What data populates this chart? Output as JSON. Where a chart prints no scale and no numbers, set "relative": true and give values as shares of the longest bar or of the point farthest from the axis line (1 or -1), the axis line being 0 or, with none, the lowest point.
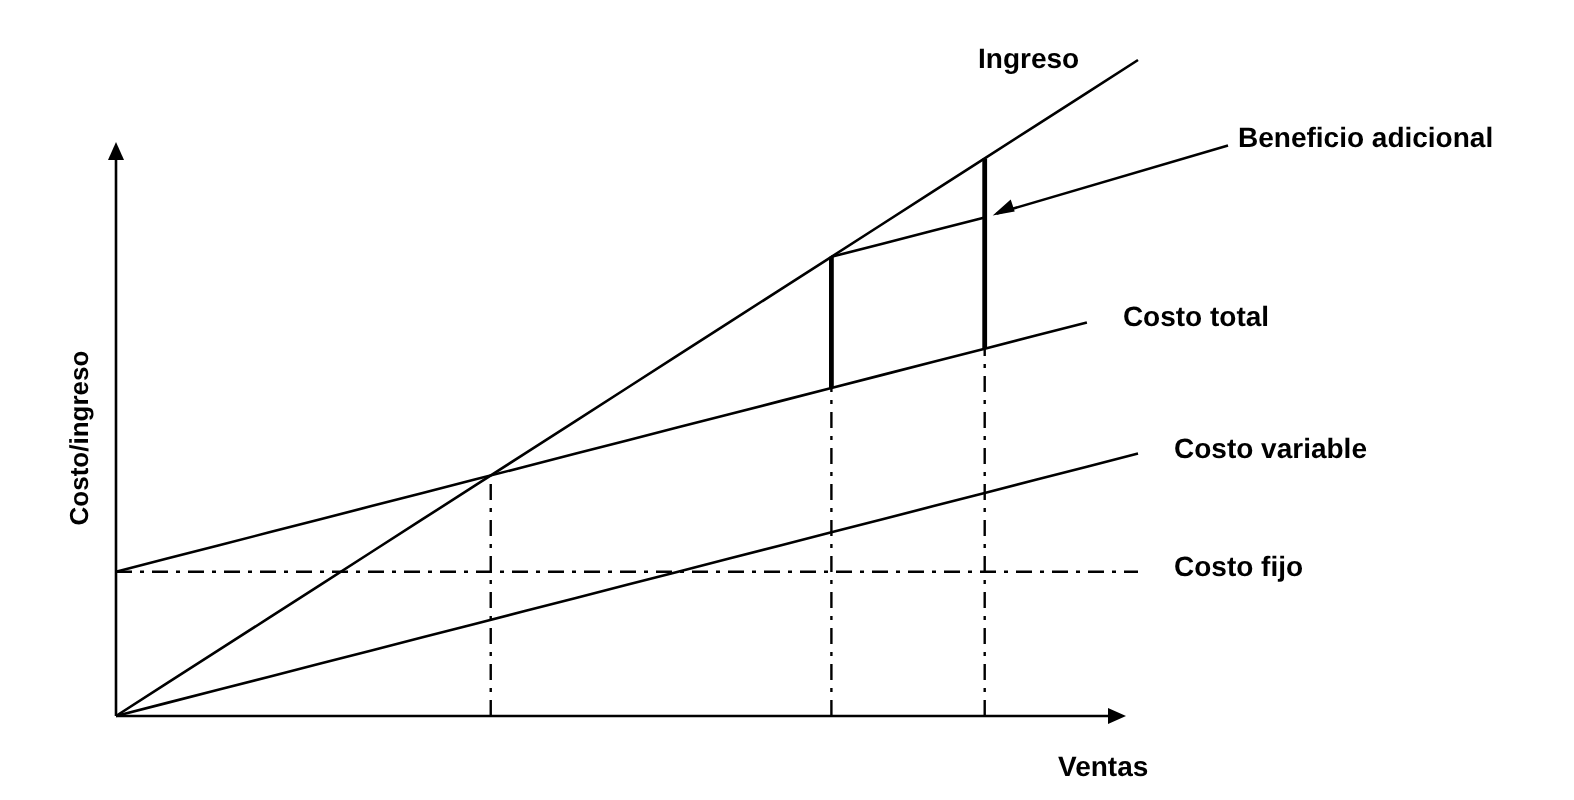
{
  "chart_data": {
    "type": "line",
    "relative": true,
    "xlabel": "Ventas",
    "ylabel": "Costo/ingreso",
    "categories": [
      null,
      null,
      null,
      null,
      null,
      null,
      null,
      null,
      null,
      null,
      null,
      null,
      null,
      null,
      null,
      null,
      null,
      null,
      null,
      null,
      null
    ],
    "series": [
      {
        "name": "Ingreso",
        "color": "#000000",
        "values": [
          0,
          0.05,
          0.1,
          0.15,
          0.2,
          0.25,
          0.3,
          0.35,
          0.4,
          0.45,
          0.5,
          0.55,
          0.6,
          0.65,
          0.7,
          0.75,
          0.8,
          0.85,
          0.9,
          0.95,
          1
        ]
      },
      {
        "name": "Beneficio adicional",
        "color": "#000000",
        "values": [
          null,
          null,
          null,
          null,
          null,
          null,
          null,
          null,
          null,
          null,
          null,
          null,
          null,
          null,
          0.7,
          0.72,
          0.74,
          0.76,
          null,
          null,
          null
        ]
      },
      {
        "name": "Costo total",
        "color": "#000000",
        "values": [
          0.22,
          0.24,
          0.26,
          0.28,
          0.3,
          0.32,
          0.34,
          0.36,
          0.38,
          0.4,
          0.42,
          0.44,
          0.46,
          0.48,
          0.5,
          0.52,
          0.54,
          0.56,
          0.58,
          0.6,
          null
        ]
      },
      {
        "name": "Costo variable",
        "color": "#000000",
        "values": [
          0,
          0.02,
          0.04,
          0.06,
          0.08,
          0.1,
          0.12,
          0.14,
          0.16,
          0.18,
          0.2,
          0.22,
          0.24,
          0.26,
          0.28,
          0.3,
          0.32,
          0.34,
          0.36,
          0.38,
          0.4
        ]
      },
      {
        "name": "Costo fijo",
        "color": "#000000",
        "line_style": "dashed",
        "values": [
          0.22,
          0.22,
          0.22,
          0.22,
          0.22,
          0.22,
          0.22,
          0.22,
          0.22,
          0.22,
          0.22,
          0.22,
          0.22,
          0.22,
          0.22,
          0.22,
          0.22,
          0.22,
          0.22,
          0.22,
          0.22
        ]
      }
    ]
  }
}
